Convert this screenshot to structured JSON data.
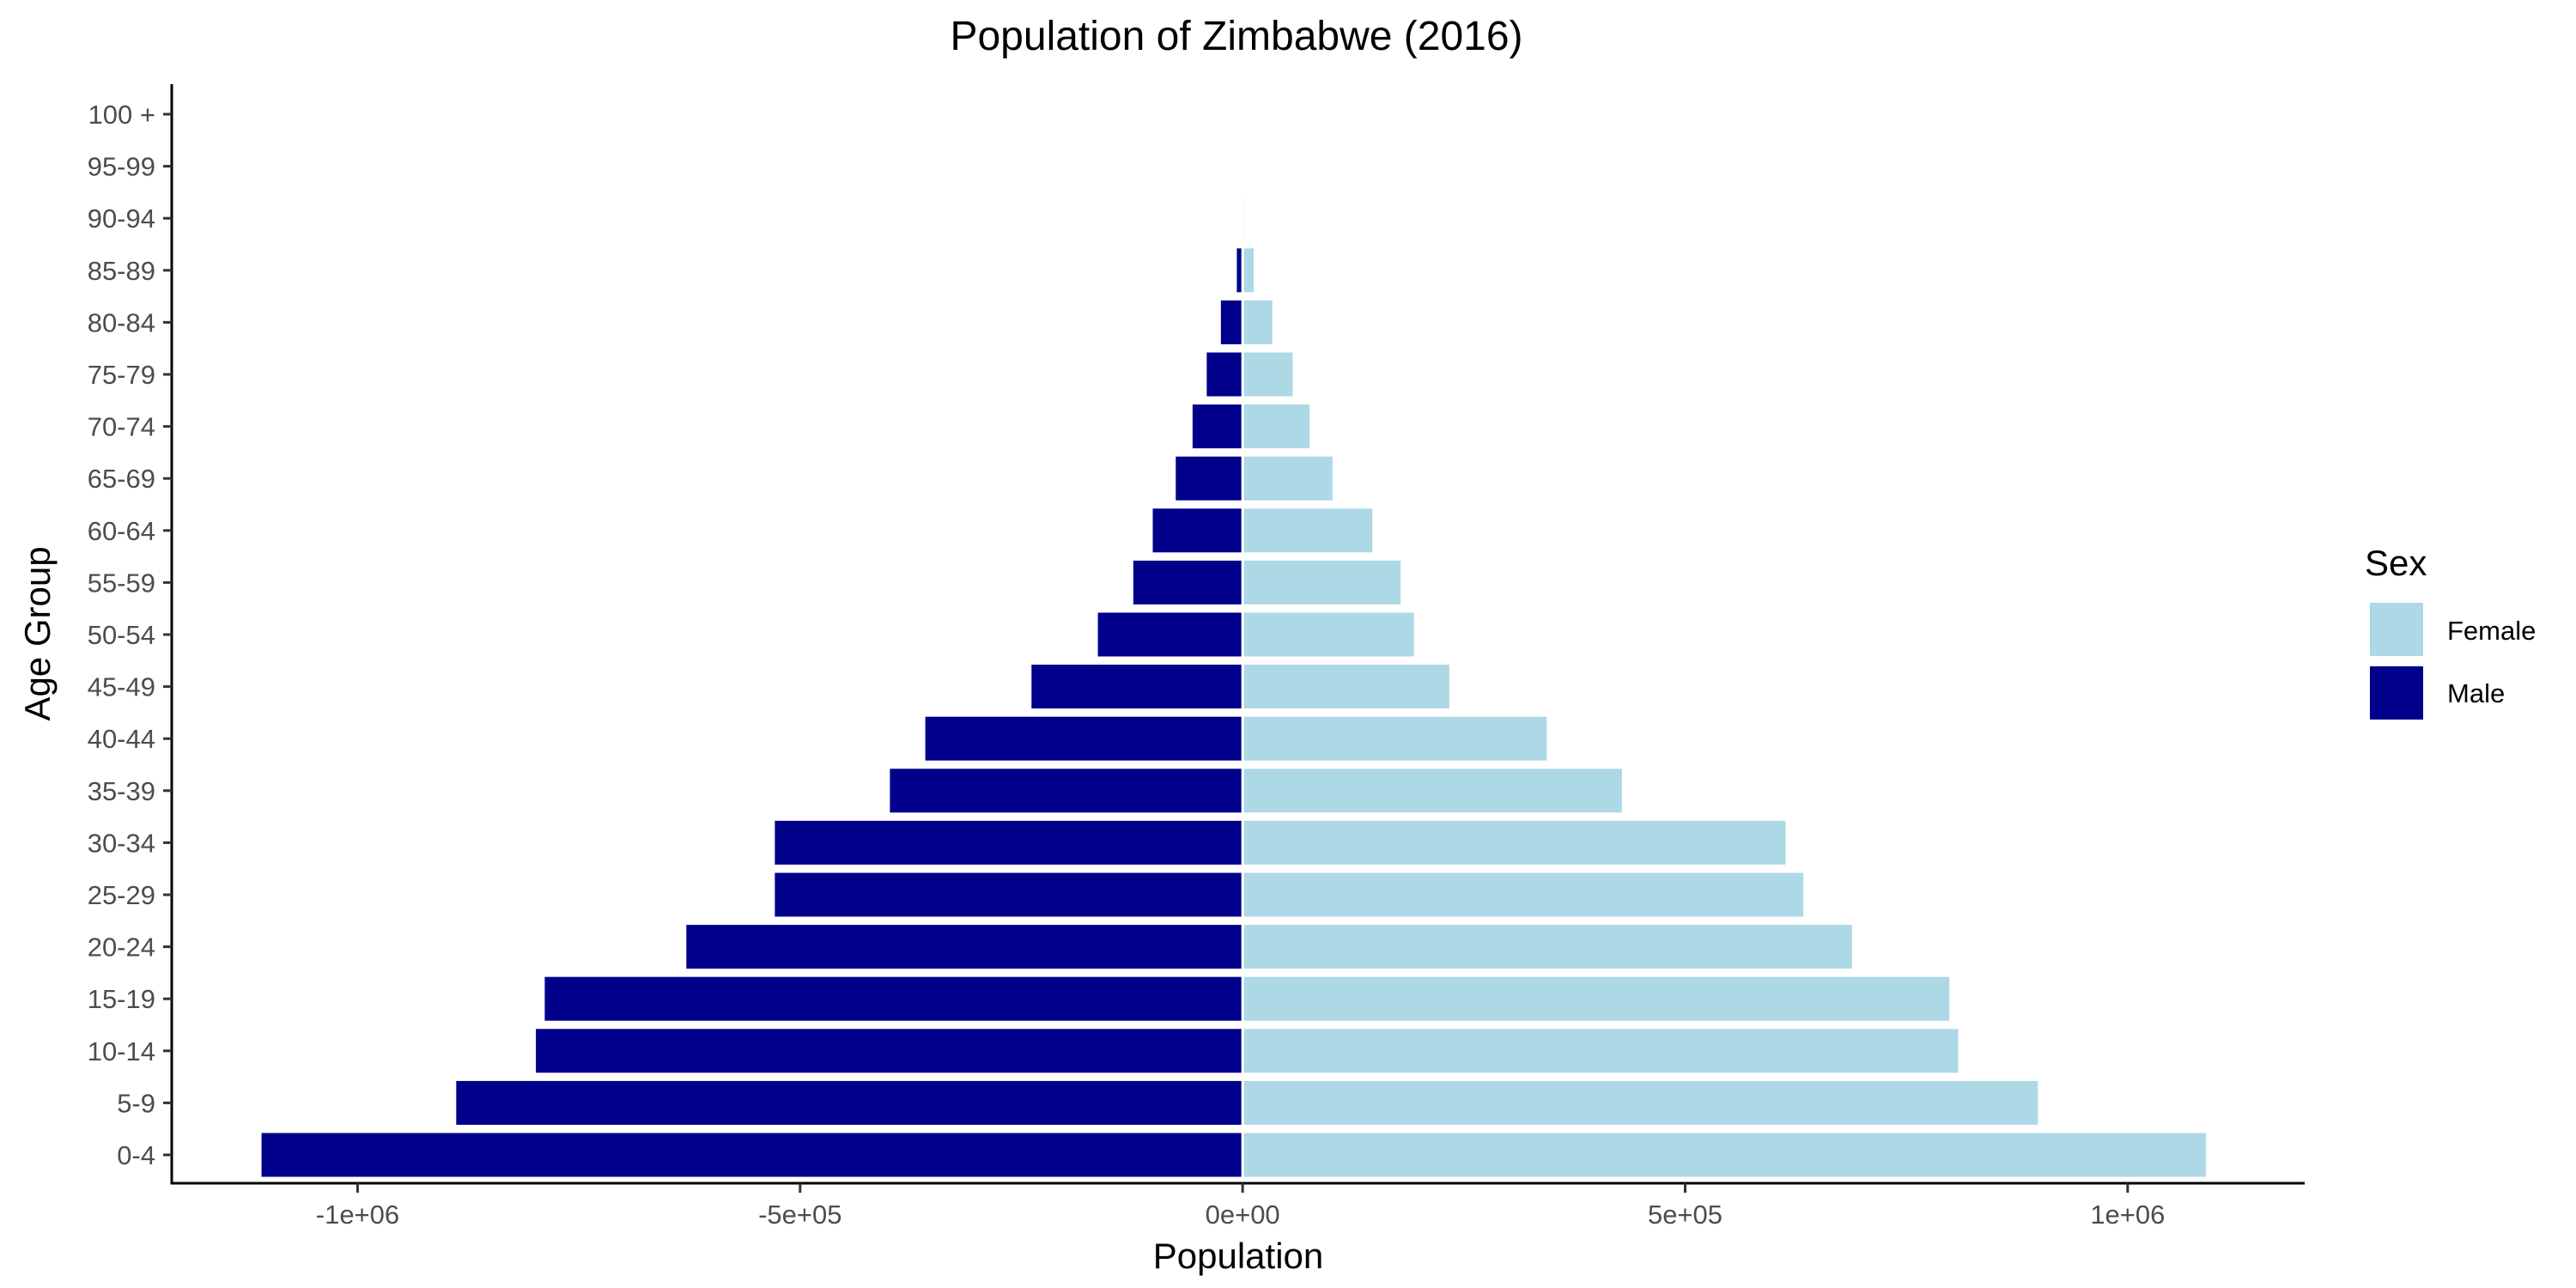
{
  "chart_data": {
    "type": "bar",
    "orientation": "horizontal",
    "title": "Population of Zimbabwe (2016)",
    "xlabel": "Population",
    "ylabel": "Age Group",
    "categories": [
      "0-4",
      "5-9",
      "10-14",
      "15-19",
      "20-24",
      "25-29",
      "30-34",
      "35-39",
      "40-44",
      "45-49",
      "50-54",
      "55-59",
      "60-64",
      "65-69",
      "70-74",
      "75-79",
      "80-84",
      "85-89",
      "90-94",
      "95-99",
      "100 +"
    ],
    "series": [
      {
        "name": "Female",
        "color": "#add8e6",
        "values": [
          1090000,
          900000,
          810000,
          800000,
          690000,
          635000,
          615000,
          430000,
          345000,
          235000,
          195000,
          180000,
          148000,
          103000,
          77000,
          58000,
          35000,
          14000,
          3000,
          500,
          100
        ]
      },
      {
        "name": "Male",
        "color": "#00008b",
        "values": [
          -1110000,
          -890000,
          -800000,
          -790000,
          -630000,
          -530000,
          -530000,
          -400000,
          -360000,
          -240000,
          -165000,
          -125000,
          -103000,
          -77000,
          -58000,
          -42000,
          -26000,
          -8000,
          -1500,
          -300,
          -50
        ]
      }
    ],
    "xlim": [
      -1210000,
      1200000
    ],
    "xticks": [
      {
        "value": -1000000,
        "label": "-1e+06"
      },
      {
        "value": -500000,
        "label": "-5e+05"
      },
      {
        "value": 0,
        "label": "0e+00"
      },
      {
        "value": 500000,
        "label": "5e+05"
      },
      {
        "value": 1000000,
        "label": "1e+06"
      }
    ],
    "grid": false,
    "legend": {
      "title": "Sex",
      "position": "right",
      "items": [
        {
          "label": "Female",
          "color": "#add8e6"
        },
        {
          "label": "Male",
          "color": "#00008b"
        }
      ]
    }
  }
}
